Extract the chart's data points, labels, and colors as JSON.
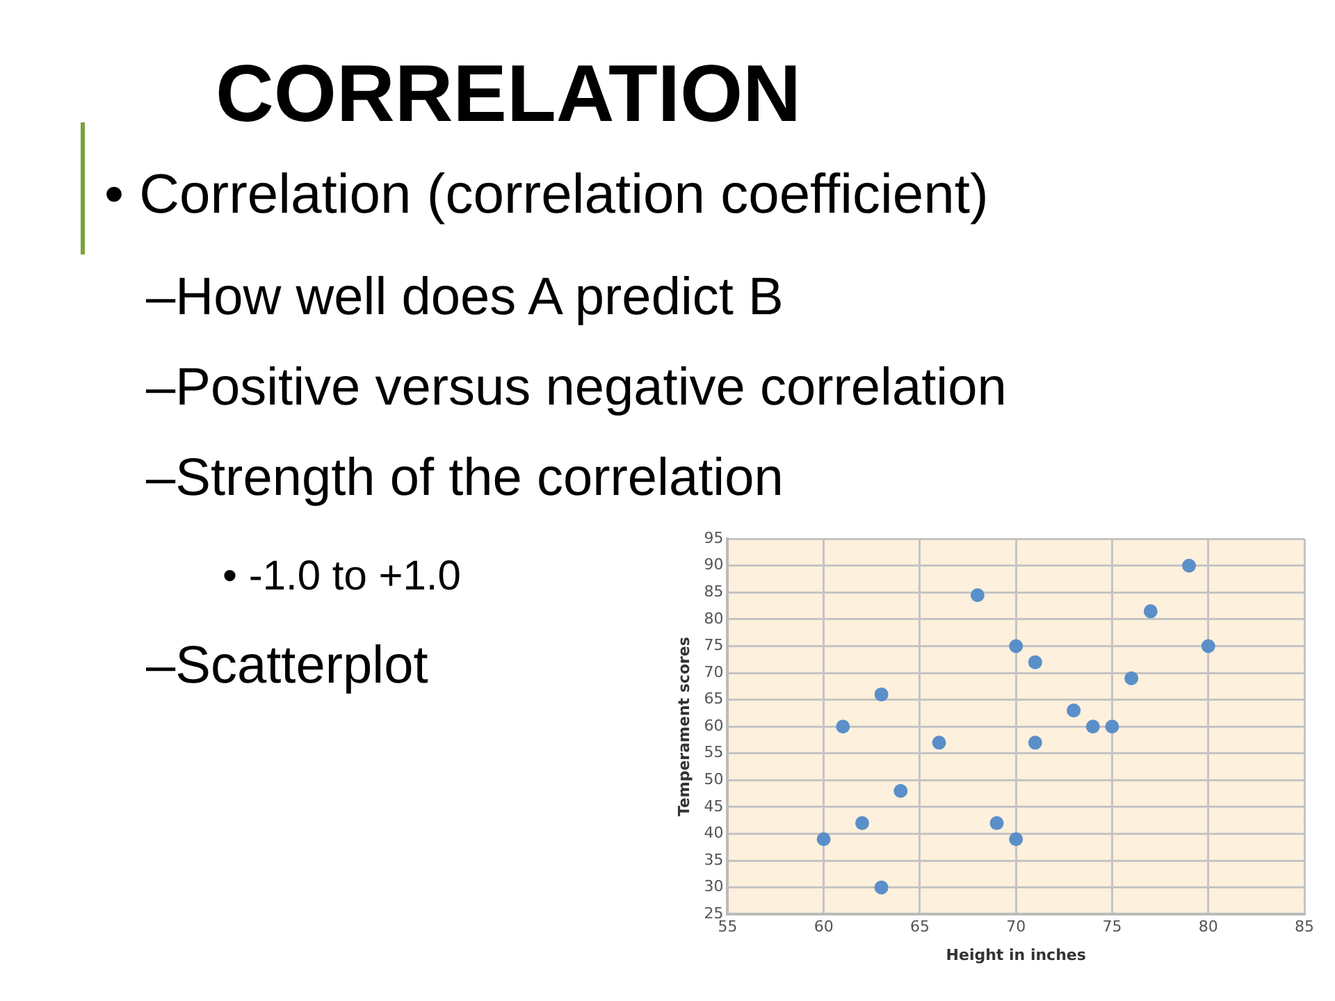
{
  "chart_data": {
    "type": "scatter",
    "title": "CORRELATION",
    "xlabel": "Height in inches",
    "ylabel": "Temperament scores",
    "annotations": [
      "• Correlation (correlation coefficient)",
      "–How well does A predict B",
      "–Positive versus negative correlation",
      "–Strength of the correlation",
      "• -1.0  to  +1.0",
      "–Scatterplot"
    ],
    "series": [
      {
        "color": "#5b8fc9",
        "x": [
          60,
          61,
          62,
          63,
          63,
          64,
          66,
          68,
          69,
          70,
          70,
          71,
          71,
          73,
          74,
          75,
          76,
          77,
          79,
          80
        ],
        "values": [
          39,
          60,
          42,
          66,
          30,
          48,
          57,
          84.5,
          42,
          75,
          39,
          72,
          57,
          63,
          60,
          60,
          69,
          81.5,
          90,
          75
        ]
      }
    ],
    "xlim": [
      55,
      85
    ],
    "xticks": [
      55,
      60,
      65,
      70,
      75,
      80,
      85
    ],
    "ylim": [
      25,
      95
    ],
    "yticks": [
      25,
      30,
      35,
      40,
      45,
      50,
      55,
      60,
      65,
      70,
      75,
      80,
      85,
      90,
      95
    ],
    "grid": true,
    "marker": "circle",
    "legend": false
  }
}
